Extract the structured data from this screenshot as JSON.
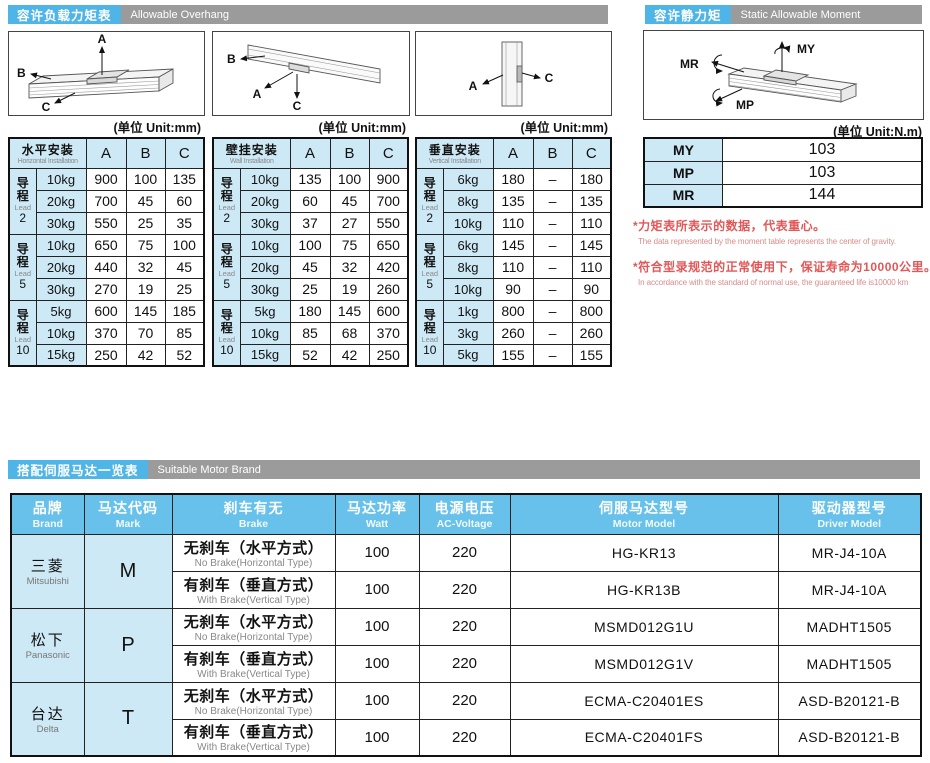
{
  "sections": {
    "overhang": {
      "title_zh": "容许负载力矩表",
      "title_en": "Allowable Overhang"
    },
    "moment": {
      "title_zh": "容许静力矩",
      "title_en": "Static Allowable Moment"
    },
    "motor": {
      "title_zh": "搭配伺服马达一览表",
      "title_en": "Suitable Motor Brand"
    }
  },
  "units": {
    "mm": "(单位 Unit:mm)",
    "nm": "(单位 Unit:N.m)"
  },
  "diagram_labels": {
    "a": "A",
    "b": "B",
    "c": "C",
    "my": "MY",
    "mp": "MP",
    "mr": "MR"
  },
  "overhang_tables": [
    {
      "name_zh": "水平安装",
      "name_en": "Horizontal Installation",
      "columns": [
        "A",
        "B",
        "C"
      ],
      "groups": [
        {
          "lead_zh": "导程",
          "lead_en": "Lead",
          "lead_num": "2",
          "rows": [
            {
              "load": "10kg",
              "a": "900",
              "b": "100",
              "c": "135"
            },
            {
              "load": "20kg",
              "a": "700",
              "b": "45",
              "c": "60"
            },
            {
              "load": "30kg",
              "a": "550",
              "b": "25",
              "c": "35"
            }
          ]
        },
        {
          "lead_zh": "导程",
          "lead_en": "Lead",
          "lead_num": "5",
          "rows": [
            {
              "load": "10kg",
              "a": "650",
              "b": "75",
              "c": "100"
            },
            {
              "load": "20kg",
              "a": "440",
              "b": "32",
              "c": "45"
            },
            {
              "load": "30kg",
              "a": "270",
              "b": "19",
              "c": "25"
            }
          ]
        },
        {
          "lead_zh": "导程",
          "lead_en": "Lead",
          "lead_num": "10",
          "rows": [
            {
              "load": "5kg",
              "a": "600",
              "b": "145",
              "c": "185"
            },
            {
              "load": "10kg",
              "a": "370",
              "b": "70",
              "c": "85"
            },
            {
              "load": "15kg",
              "a": "250",
              "b": "42",
              "c": "52"
            }
          ]
        }
      ]
    },
    {
      "name_zh": "壁挂安装",
      "name_en": "Wall Installation",
      "columns": [
        "A",
        "B",
        "C"
      ],
      "groups": [
        {
          "lead_zh": "导程",
          "lead_en": "Lead",
          "lead_num": "2",
          "rows": [
            {
              "load": "10kg",
              "a": "135",
              "b": "100",
              "c": "900"
            },
            {
              "load": "20kg",
              "a": "60",
              "b": "45",
              "c": "700"
            },
            {
              "load": "30kg",
              "a": "37",
              "b": "27",
              "c": "550"
            }
          ]
        },
        {
          "lead_zh": "导程",
          "lead_en": "Lead",
          "lead_num": "5",
          "rows": [
            {
              "load": "10kg",
              "a": "100",
              "b": "75",
              "c": "650"
            },
            {
              "load": "20kg",
              "a": "45",
              "b": "32",
              "c": "420"
            },
            {
              "load": "30kg",
              "a": "25",
              "b": "19",
              "c": "260"
            }
          ]
        },
        {
          "lead_zh": "导程",
          "lead_en": "Lead",
          "lead_num": "10",
          "rows": [
            {
              "load": "5kg",
              "a": "180",
              "b": "145",
              "c": "600"
            },
            {
              "load": "10kg",
              "a": "85",
              "b": "68",
              "c": "370"
            },
            {
              "load": "15kg",
              "a": "52",
              "b": "42",
              "c": "250"
            }
          ]
        }
      ]
    },
    {
      "name_zh": "垂直安装",
      "name_en": "Vertical Installation",
      "columns": [
        "A",
        "B",
        "C"
      ],
      "groups": [
        {
          "lead_zh": "导程",
          "lead_en": "Lead",
          "lead_num": "2",
          "rows": [
            {
              "load": "6kg",
              "a": "180",
              "b": "–",
              "c": "180"
            },
            {
              "load": "8kg",
              "a": "135",
              "b": "–",
              "c": "135"
            },
            {
              "load": "10kg",
              "a": "110",
              "b": "–",
              "c": "110"
            }
          ]
        },
        {
          "lead_zh": "导程",
          "lead_en": "Lead",
          "lead_num": "5",
          "rows": [
            {
              "load": "6kg",
              "a": "145",
              "b": "–",
              "c": "145"
            },
            {
              "load": "8kg",
              "a": "110",
              "b": "–",
              "c": "110"
            },
            {
              "load": "10kg",
              "a": "90",
              "b": "–",
              "c": "90"
            }
          ]
        },
        {
          "lead_zh": "导程",
          "lead_en": "Lead",
          "lead_num": "10",
          "rows": [
            {
              "load": "1kg",
              "a": "800",
              "b": "–",
              "c": "800"
            },
            {
              "load": "3kg",
              "a": "260",
              "b": "–",
              "c": "260"
            },
            {
              "load": "5kg",
              "a": "155",
              "b": "–",
              "c": "155"
            }
          ]
        }
      ]
    }
  ],
  "moment_table": {
    "rows": [
      {
        "label": "MY",
        "value": "103"
      },
      {
        "label": "MP",
        "value": "103"
      },
      {
        "label": "MR",
        "value": "144"
      }
    ]
  },
  "notes": [
    {
      "zh": "*力矩表所表示的数据，代表重心。",
      "en": "The data represented by the moment table represents the center of gravity."
    },
    {
      "zh": "*符合型录规范的正常使用下，保证寿命为10000公里。",
      "en": "In accordance with the standard of normal use, the guaranteed life is10000 km"
    }
  ],
  "motor_table": {
    "headers": [
      {
        "zh": "品牌",
        "en": "Brand"
      },
      {
        "zh": "马达代码",
        "en": "Mark"
      },
      {
        "zh": "刹车有无",
        "en": "Brake"
      },
      {
        "zh": "马达功率",
        "en": "Watt"
      },
      {
        "zh": "电源电压",
        "en": "AC-Voltage"
      },
      {
        "zh": "伺服马达型号",
        "en": "Motor Model"
      },
      {
        "zh": "驱动器型号",
        "en": "Driver Model"
      }
    ],
    "brands": [
      {
        "zh": "三菱",
        "en": "Mitsubishi",
        "mark": "M",
        "rows": [
          {
            "brake_zh": "无刹车（水平方式）",
            "brake_en": "No Brake(Horizontal Type)",
            "watt": "100",
            "voltage": "220",
            "motor": "HG-KR13",
            "driver": "MR-J4-10A"
          },
          {
            "brake_zh": "有刹车（垂直方式）",
            "brake_en": "With Brake(Vertical Type)",
            "watt": "100",
            "voltage": "220",
            "motor": "HG-KR13B",
            "driver": "MR-J4-10A"
          }
        ]
      },
      {
        "zh": "松下",
        "en": "Panasonic",
        "mark": "P",
        "rows": [
          {
            "brake_zh": "无刹车（水平方式）",
            "brake_en": "No Brake(Horizontal Type)",
            "watt": "100",
            "voltage": "220",
            "motor": "MSMD012G1U",
            "driver": "MADHT1505"
          },
          {
            "brake_zh": "有刹车（垂直方式）",
            "brake_en": "With Brake(Vertical Type)",
            "watt": "100",
            "voltage": "220",
            "motor": "MSMD012G1V",
            "driver": "MADHT1505"
          }
        ]
      },
      {
        "zh": "台达",
        "en": "Delta",
        "mark": "T",
        "rows": [
          {
            "brake_zh": "无刹车（水平方式）",
            "brake_en": "No Brake(Horizontal Type)",
            "watt": "100",
            "voltage": "220",
            "motor": "ECMA-C20401ES",
            "driver": "ASD-B20121-B"
          },
          {
            "brake_zh": "有刹车（垂直方式）",
            "brake_en": "With Brake(Vertical Type)",
            "watt": "100",
            "voltage": "220",
            "motor": "ECMA-C20401FS",
            "driver": "ASD-B20121-B"
          }
        ]
      }
    ]
  },
  "colors": {
    "bar_blue": "#4FB5E6",
    "bar_gray": "#9B9B9B",
    "header_blue": "#67C1EA",
    "cell_blue": "#CEE9F6",
    "note_red": "#E25757",
    "note_red_light": "#D98B8B"
  }
}
